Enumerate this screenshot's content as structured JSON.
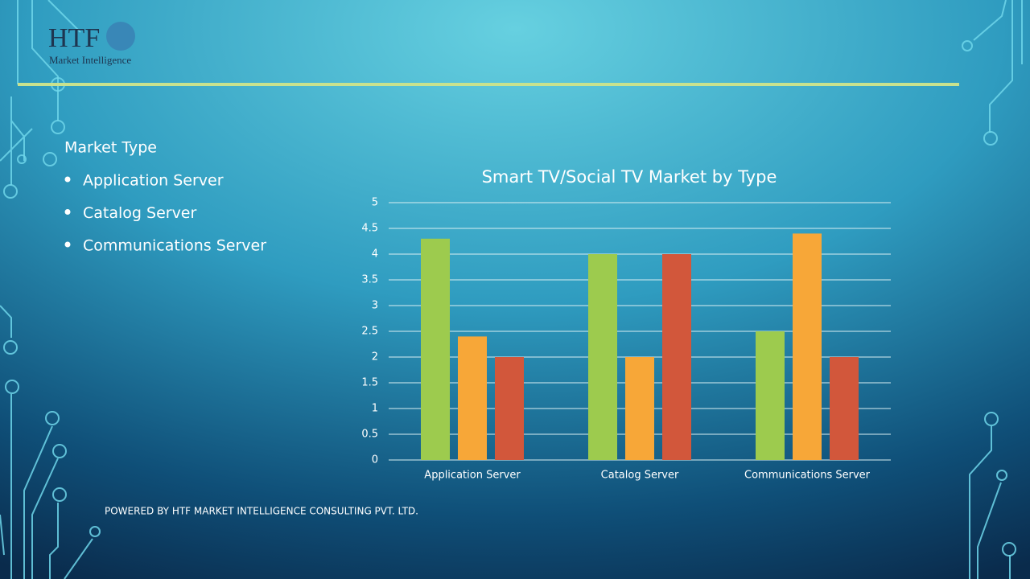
{
  "header": {
    "logo": "HTF",
    "logo_sub": "Market Intelligence"
  },
  "sidebar": {
    "heading": "Market Type",
    "items": [
      "Application Server",
      "Catalog Server",
      "Communications Server"
    ]
  },
  "footer": "POWERED BY HTF MARKET INTELLIGENCE CONSULTING PVT. LTD.",
  "chart_data": {
    "type": "bar",
    "title": "Smart TV/Social TV Market by Type",
    "categories": [
      "Application Server",
      "Catalog Server",
      "Communications Server"
    ],
    "series": [
      {
        "color": "#9dcb4e",
        "values": [
          4.3,
          4.0,
          2.5
        ]
      },
      {
        "color": "#f7a738",
        "values": [
          2.4,
          2.0,
          4.4
        ]
      },
      {
        "color": "#d2573b",
        "values": [
          2.0,
          4.0,
          2.0
        ]
      }
    ],
    "ylim": [
      0,
      5
    ],
    "yticks": [
      0,
      0.5,
      1,
      1.5,
      2,
      2.5,
      3,
      3.5,
      4,
      4.5,
      5
    ],
    "grid": true
  }
}
